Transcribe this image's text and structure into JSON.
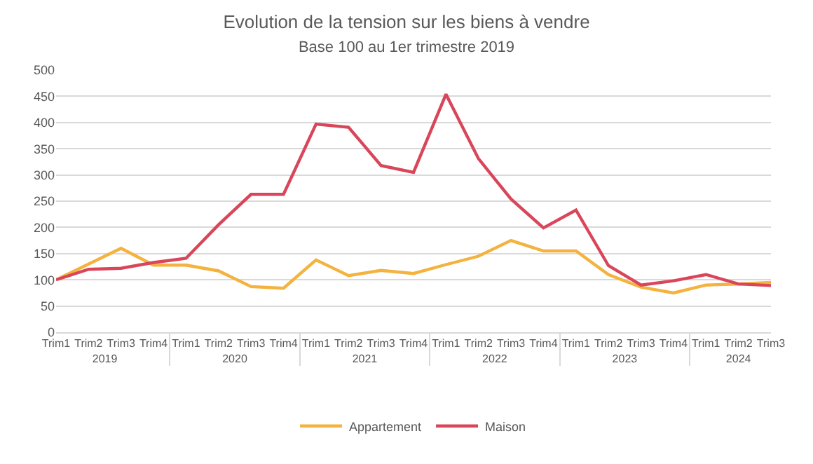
{
  "chart_data": {
    "type": "line",
    "title": "Evolution de la tension sur les biens à vendre",
    "subtitle": "Base 100 au 1er trimestre 2019",
    "categories": [
      "Trim1",
      "Trim2",
      "Trim3",
      "Trim4",
      "Trim1",
      "Trim2",
      "Trim3",
      "Trim4",
      "Trim1",
      "Trim2",
      "Trim3",
      "Trim4",
      "Trim1",
      "Trim2",
      "Trim3",
      "Trim4",
      "Trim1",
      "Trim2",
      "Trim3",
      "Trim4",
      "Trim1",
      "Trim2",
      "Trim3"
    ],
    "annotations": [
      "2019",
      "2020",
      "2021",
      "2022",
      "2023",
      "2024"
    ],
    "series": [
      {
        "name": "Appartement",
        "color": "#f4b23e",
        "values": [
          100,
          130,
          160,
          128,
          128,
          117,
          87,
          84,
          138,
          108,
          118,
          112,
          129,
          145,
          175,
          155,
          155,
          110,
          86,
          75,
          90,
          92,
          95
        ]
      },
      {
        "name": "Maison",
        "color": "#d9465a",
        "values": [
          100,
          120,
          122,
          133,
          141,
          205,
          263,
          263,
          397,
          391,
          318,
          305,
          454,
          331,
          254,
          199,
          233,
          127,
          90,
          98,
          110,
          92,
          89
        ]
      }
    ],
    "ylim": [
      0,
      500
    ],
    "yticks": [
      0,
      50,
      100,
      150,
      200,
      250,
      300,
      350,
      400,
      450,
      500
    ],
    "grid": "y",
    "legend": "bottom",
    "marker": "none",
    "line_style": "solid"
  }
}
